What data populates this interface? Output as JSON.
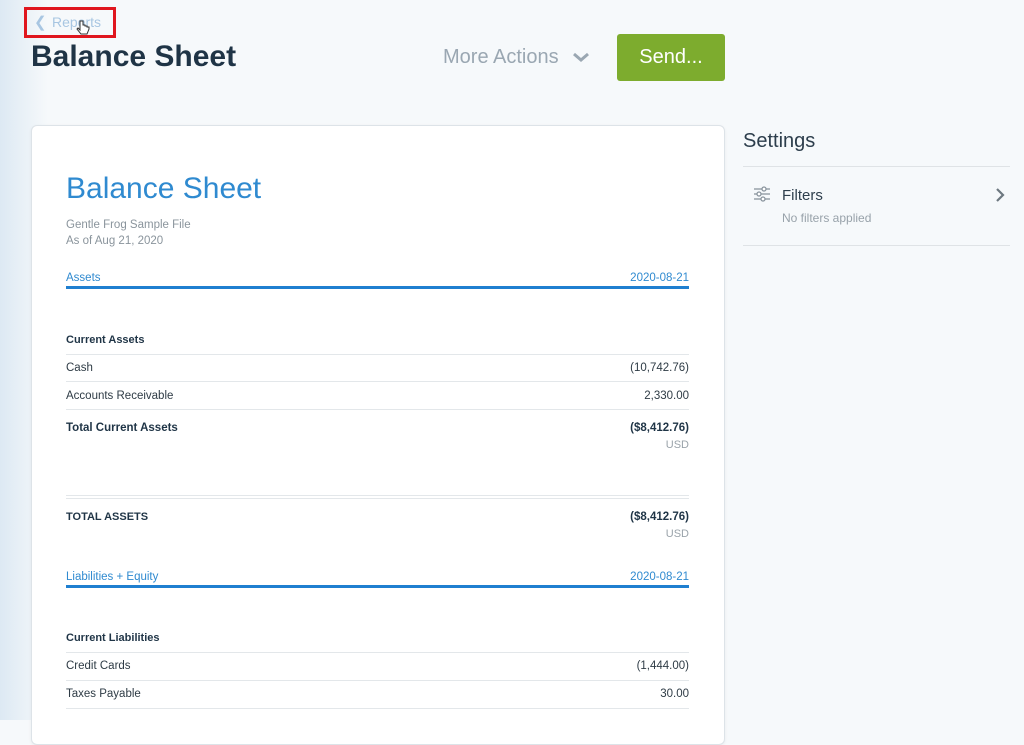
{
  "nav": {
    "back_label": "Reports"
  },
  "header": {
    "title": "Balance Sheet",
    "more_actions": "More Actions",
    "send": "Send..."
  },
  "report": {
    "title": "Balance Sheet",
    "company": "Gentle Frog Sample File",
    "as_of": "As of Aug 21, 2020",
    "assets": {
      "header": "Assets",
      "date": "2020-08-21",
      "section": "Current Assets",
      "rows": [
        {
          "label": "Cash",
          "value": "(10,742.76)"
        },
        {
          "label": "Accounts Receivable",
          "value": "2,330.00"
        }
      ],
      "total_label": "Total Current Assets",
      "total_value": "($8,412.76)",
      "currency": "USD",
      "grand_label": "TOTAL ASSETS",
      "grand_value": "($8,412.76)",
      "grand_currency": "USD"
    },
    "liabilities": {
      "header": "Liabilities + Equity",
      "date": "2020-08-21",
      "section": "Current Liabilities",
      "rows": [
        {
          "label": "Credit Cards",
          "value": "(1,444.00)"
        },
        {
          "label": "Taxes Payable",
          "value": "30.00"
        }
      ]
    }
  },
  "settings": {
    "title": "Settings",
    "filters_label": "Filters",
    "filters_status": "No filters applied"
  },
  "colors": {
    "accent": "#2f8ad0",
    "send": "#7dac2e",
    "highlight": "#e0161e"
  }
}
